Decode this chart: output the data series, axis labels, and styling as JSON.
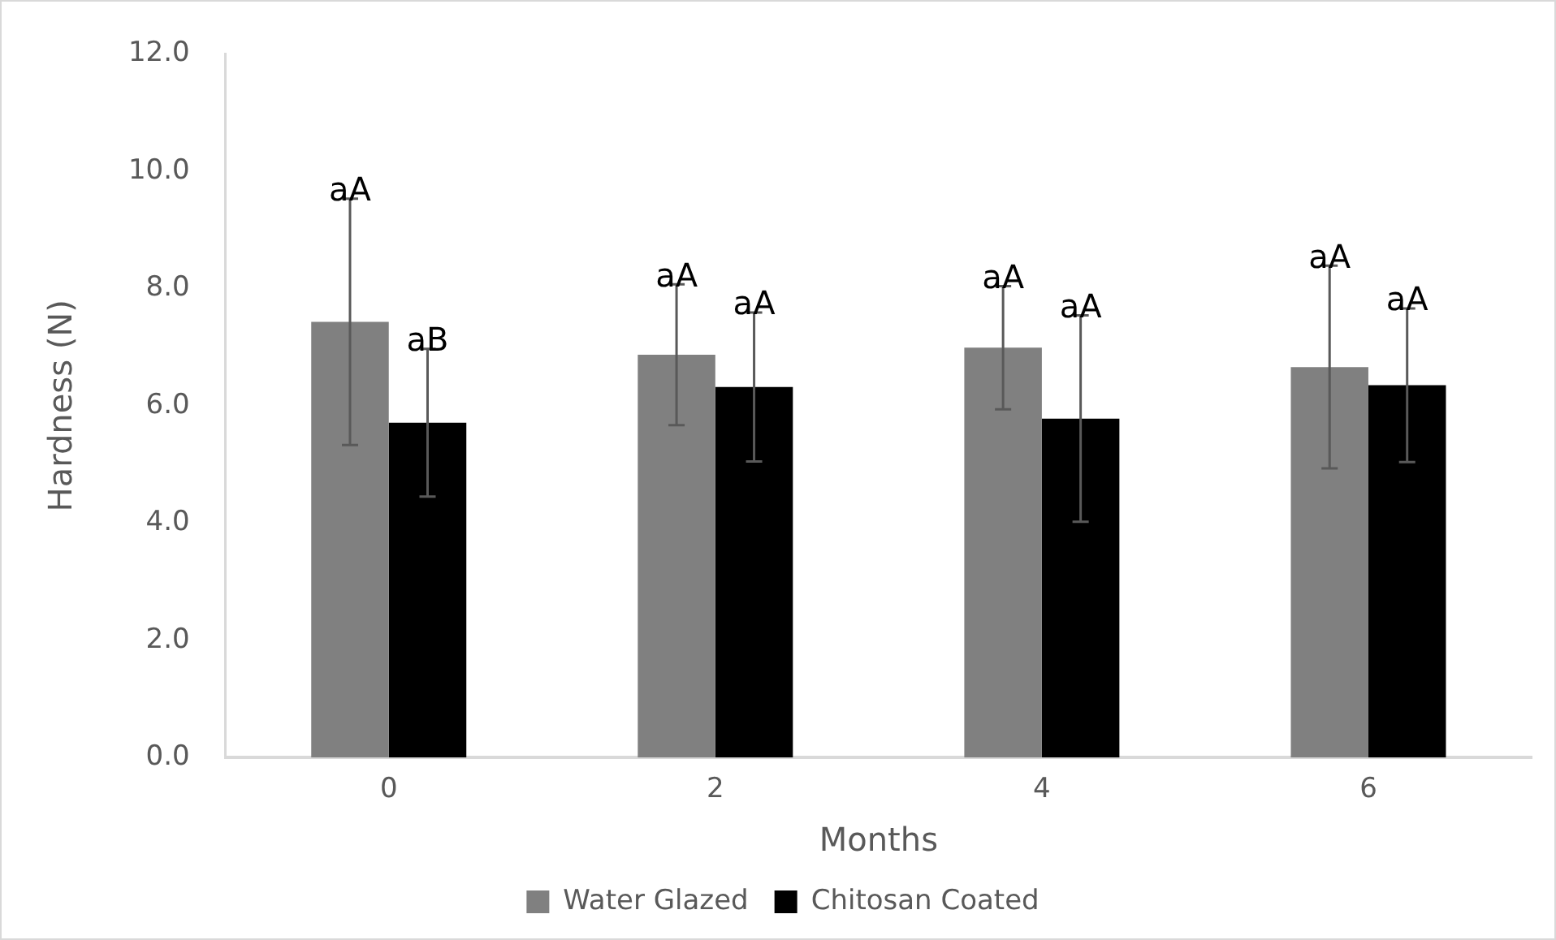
{
  "chart_data": {
    "type": "bar",
    "xlabel": "Months",
    "ylabel": "Hardness (N)",
    "categories": [
      "0",
      "2",
      "4",
      "6"
    ],
    "series": [
      {
        "name": "Water Glazed",
        "color": "#808080",
        "values": [
          7.43,
          6.87,
          6.99,
          6.66
        ],
        "errors": [
          2.1,
          1.2,
          1.05,
          1.73
        ]
      },
      {
        "name": "Chitosan Coated",
        "color": "#000000",
        "values": [
          5.71,
          6.32,
          5.78,
          6.35
        ],
        "errors": [
          1.26,
          1.27,
          1.76,
          1.31
        ]
      }
    ],
    "ylim": [
      0,
      12
    ],
    "yticks": [
      {
        "value": 0,
        "label": "0.0"
      },
      {
        "value": 2,
        "label": "2.0"
      },
      {
        "value": 4,
        "label": "4.0"
      },
      {
        "value": 6,
        "label": "6.0"
      },
      {
        "value": 8,
        "label": "8.0"
      },
      {
        "value": 10,
        "label": "10.0"
      },
      {
        "value": 12,
        "label": "12.0"
      }
    ],
    "grid": false,
    "legend": "bottom",
    "annotations": [
      "aA",
      "aB",
      "aA",
      "aA",
      "aA",
      "aA",
      "aA",
      "aA"
    ]
  }
}
